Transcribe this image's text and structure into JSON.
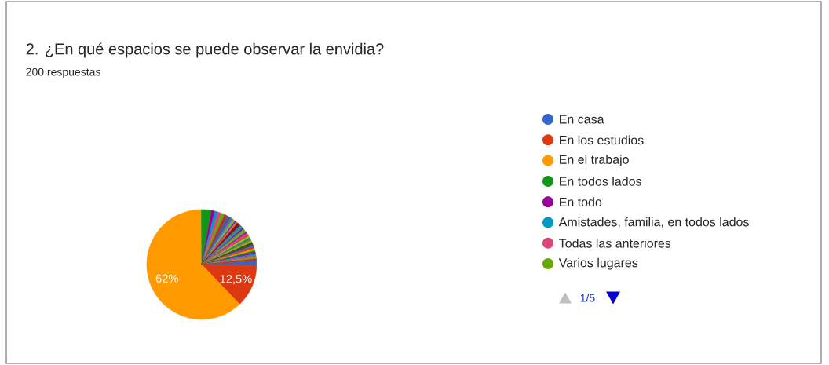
{
  "chart_data": {
    "type": "pie",
    "title": "2. ¿En qué espacios se puede observar la envidia?",
    "subtitle": "200 respuestas",
    "categories": [
      "En casa",
      "En los estudios",
      "En el trabajo",
      "En todos lados",
      "En todo",
      "Amistades, familia, en todos lados",
      "Todas las anteriores",
      "Varios lugares",
      null,
      null,
      null,
      null,
      null,
      null,
      null,
      null,
      null,
      null,
      null,
      null,
      null,
      null,
      null,
      null,
      null,
      null,
      null,
      null,
      null,
      null,
      null,
      null,
      null,
      null,
      null,
      null,
      null,
      null,
      null,
      null
    ],
    "values": [
      1.5,
      12.5,
      62,
      3,
      1,
      1,
      1,
      1,
      1,
      1,
      0.5,
      0.5,
      0.5,
      0.5,
      0.5,
      0.5,
      0.5,
      0.5,
      0.5,
      0.5,
      0.5,
      0.5,
      0.5,
      0.5,
      0.5,
      0.5,
      0.5,
      0.5,
      0.5,
      0.5,
      0.5,
      0.5,
      0.5,
      0.5,
      0.5,
      0.5,
      0.5,
      0.5,
      0.5,
      0.5
    ],
    "value_labels": [
      null,
      "12,5%",
      "62%",
      null,
      null,
      null,
      null,
      null,
      null,
      null,
      null,
      null,
      null,
      null,
      null,
      null,
      null,
      null,
      null,
      null,
      null,
      null,
      null,
      null,
      null,
      null,
      null,
      null,
      null,
      null,
      null,
      null,
      null,
      null,
      null,
      null,
      null,
      null,
      null,
      null
    ],
    "colors": [
      "#3366cc",
      "#dc3912",
      "#ff9900",
      "#109618",
      "#990099",
      "#0099c6",
      "#dd4477",
      "#66aa00",
      "#b82e2e",
      "#316395",
      "#994499",
      "#22aa99",
      "#aaaa11",
      "#6633cc",
      "#e67300",
      "#8b0707",
      "#651067",
      "#329262",
      "#5574a6",
      "#3b3eac",
      "#b77322",
      "#16d620",
      "#b91383",
      "#f4359e",
      "#9c5935",
      "#a9c413",
      "#2a778d",
      "#668d1c",
      "#bea413",
      "#0c5922",
      "#743411",
      "#3366cc",
      "#dc3912",
      "#ff9900",
      "#109618",
      "#990099",
      "#0099c6",
      "#dd4477",
      "#66aa00",
      "#b82e2e"
    ],
    "legend": "right",
    "annotations": [
      "1/5"
    ]
  }
}
